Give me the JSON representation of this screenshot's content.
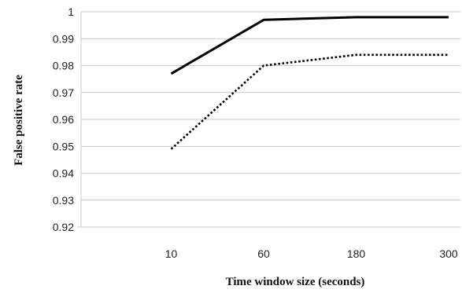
{
  "chart_data": {
    "type": "line",
    "title": "",
    "xlabel": "Time window size (seconds)",
    "ylabel": "False positive rate",
    "categories": [
      "10",
      "60",
      "180",
      "300"
    ],
    "ylim": [
      0.92,
      1
    ],
    "yticks": [
      "0.92",
      "0.93",
      "0.94",
      "0.95",
      "0.96",
      "0.97",
      "0.98",
      "0.99",
      "1"
    ],
    "grid": true,
    "legend": "none",
    "series": [
      {
        "style": "solid",
        "color": "#000000",
        "values": [
          0.977,
          0.997,
          0.998,
          0.998
        ]
      },
      {
        "style": "dotted",
        "color": "#000000",
        "values": [
          0.949,
          0.98,
          0.984,
          0.984
        ]
      }
    ]
  }
}
